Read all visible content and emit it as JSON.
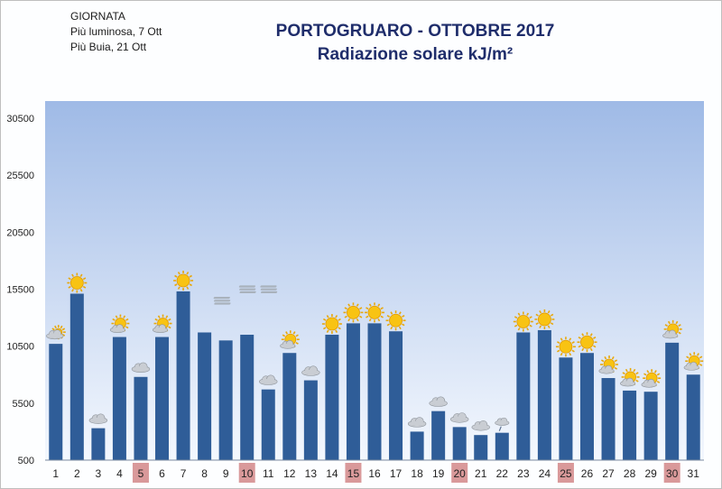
{
  "header": {
    "info_title": "GIORNATA",
    "brightest": "Più luminosa, 7 Ott",
    "darkest": "Più Buia, 21 Ott"
  },
  "chart_data": {
    "type": "bar",
    "title": "PORTOGRUARO - OTTOBRE 2017",
    "subtitle": "Radiazione solare kJ/m²",
    "xlabel": "",
    "ylabel": "",
    "ylim": [
      500,
      32000
    ],
    "yticks": [
      500,
      5500,
      10500,
      15500,
      20500,
      25500,
      30500
    ],
    "grid": false,
    "categories": [
      "1",
      "2",
      "3",
      "4",
      "5",
      "6",
      "7",
      "8",
      "9",
      "10",
      "11",
      "12",
      "13",
      "14",
      "15",
      "16",
      "17",
      "18",
      "19",
      "20",
      "21",
      "22",
      "23",
      "24",
      "25",
      "26",
      "27",
      "28",
      "29",
      "30",
      "31"
    ],
    "values": [
      10700,
      15100,
      3300,
      11300,
      7800,
      11300,
      15300,
      11700,
      11000,
      11500,
      6700,
      9900,
      7500,
      11500,
      12500,
      12500,
      11800,
      3000,
      4800,
      3400,
      2700,
      2900,
      11700,
      11900,
      9500,
      9900,
      7700,
      6600,
      6500,
      10800,
      8000
    ],
    "highlighted_days": [
      "5",
      "10",
      "15",
      "20",
      "25",
      "30"
    ],
    "weather_icons": [
      "partly-cloudy",
      "sunny",
      "cloudy",
      "sun-behind-cloud",
      "cloudy",
      "sun-behind-cloud",
      "sunny",
      "",
      "",
      "",
      "cloudy",
      "sun-behind-cloud",
      "cloudy",
      "sunny",
      "sunny",
      "sunny",
      "sunny",
      "cloudy",
      "cloudy",
      "cloudy",
      "cloudy",
      "drizzle",
      "sunny",
      "sunny",
      "sunny",
      "sunny",
      "sun-behind-cloud",
      "sun-behind-cloud",
      "sun-behind-cloud",
      "sun-behind-cloud",
      "sun-behind-cloud"
    ],
    "haze_days": [
      "14",
      "15",
      "16"
    ]
  },
  "colors": {
    "bar": "#2f5d98",
    "plot_top": "#9fbae6",
    "plot_bottom": "#f4f8fe",
    "highlight_label_bg": "#d9999a",
    "title": "#1f2d6b",
    "sun": "#f8c313",
    "cloud": "#c9cdd3"
  }
}
